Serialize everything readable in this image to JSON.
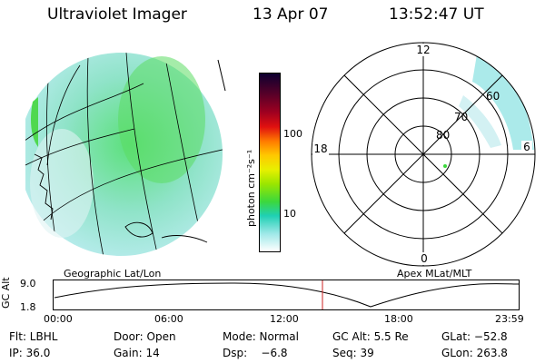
{
  "header": {
    "instrument": "Ultraviolet Imager",
    "date": "13 Apr 07",
    "time": "13:52:47 UT"
  },
  "colorbar": {
    "unit_label": "photon cm⁻²s⁻¹",
    "ticks": [
      "100",
      "10"
    ],
    "colors": [
      "#0d0030",
      "#5a0028",
      "#a00020",
      "#e01010",
      "#ff7a00",
      "#ffc800",
      "#e8f000",
      "#9ce600",
      "#3cd83c",
      "#20d0b4",
      "#9ee8e8",
      "#ffffff"
    ]
  },
  "map_labels": {
    "left": "Geographic Lat/Lon",
    "right": "Apex MLat/MLT"
  },
  "polar": {
    "mlt": {
      "top": "12",
      "bottom": "0",
      "left": "18",
      "right": "6"
    },
    "mlat": [
      "80",
      "70",
      "60"
    ]
  },
  "altitude_plot": {
    "ylabel": "GC Alt",
    "yticks": [
      "9.0",
      "1.8"
    ],
    "xticks": [
      "00:00",
      "06:00",
      "12:00",
      "18:00",
      "23:59"
    ]
  },
  "status": {
    "row1": [
      "Flt: LBHL",
      "Door: Open",
      "Mode: Normal",
      "GC Alt: 5.5 Re",
      "GLat: −52.8"
    ],
    "row2": [
      "IP: 36.0",
      "Gain: 14",
      "Dsp:    −6.8",
      "Seq: 39",
      "GLon: 263.8"
    ]
  }
}
